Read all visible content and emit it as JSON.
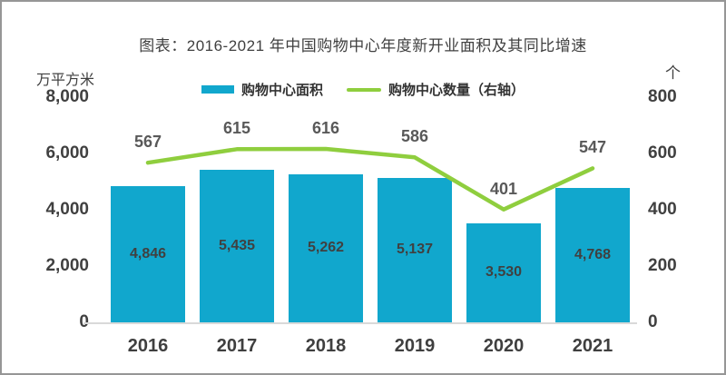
{
  "chart_data": {
    "type": "bar+line",
    "title": "图表：2016-2021 年中国购物中心年度新开业面积及其同比增速",
    "categories": [
      "2016",
      "2017",
      "2018",
      "2019",
      "2020",
      "2021"
    ],
    "series": [
      {
        "name": "购物中心面积",
        "type": "bar",
        "axis": "left",
        "color": "#11A7CD",
        "values": [
          4846,
          5435,
          5262,
          5137,
          3530,
          4768
        ],
        "labels": [
          "4,846",
          "5,435",
          "5,262",
          "5,137",
          "3,530",
          "4,768"
        ]
      },
      {
        "name": "购物中心数量（右轴）",
        "type": "line",
        "axis": "right",
        "color": "#8FCE3E",
        "values": [
          567,
          615,
          616,
          586,
          401,
          547
        ],
        "labels": [
          "567",
          "615",
          "616",
          "586",
          "401",
          "547"
        ]
      }
    ],
    "left_axis": {
      "unit": "万平方米",
      "min": 0,
      "max": 8000,
      "ticks": [
        "8,000",
        "6,000",
        "4,000",
        "2,000",
        "0"
      ]
    },
    "right_axis": {
      "unit": "个",
      "min": 0,
      "max": 800,
      "ticks": [
        "800",
        "600",
        "400",
        "200",
        "0"
      ]
    },
    "grid": false,
    "legend_position": "top",
    "colors": {
      "bar": "#11A7CD",
      "line": "#8FCE3E",
      "axis_line": "#D9D9D9",
      "text": "#404040",
      "line_label_text": "#595959",
      "frame_border": "#969696"
    }
  }
}
